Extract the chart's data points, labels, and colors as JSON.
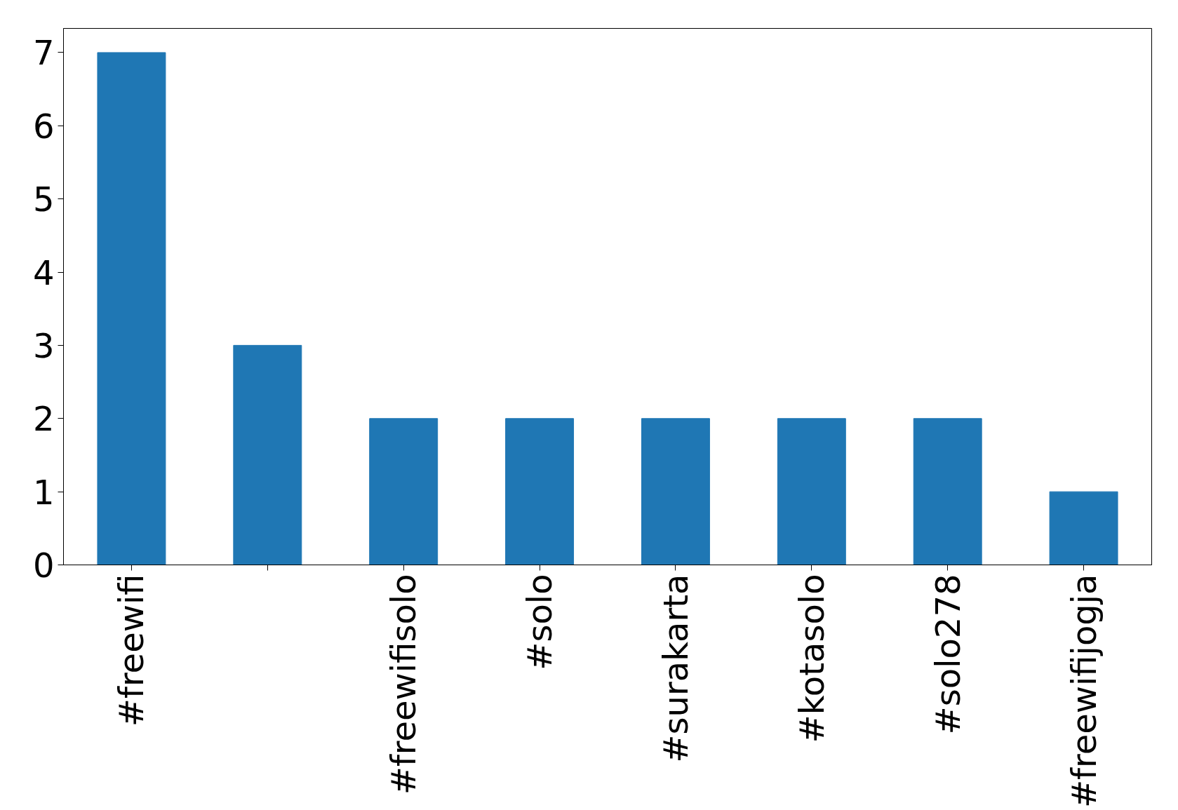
{
  "chart_data": {
    "type": "bar",
    "categories": [
      "#freewifi",
      null,
      "#freewifisolo",
      "#solo",
      "#surakarta",
      "#kotasolo",
      "#solo278",
      "#freewifijogja"
    ],
    "values": [
      7,
      3,
      2,
      2,
      2,
      2,
      2,
      1
    ],
    "color": "#1f77b4",
    "ylim": [
      0,
      7.33
    ],
    "yticks": [
      0,
      1,
      2,
      3,
      4,
      5,
      6,
      7
    ],
    "grid": false
  }
}
